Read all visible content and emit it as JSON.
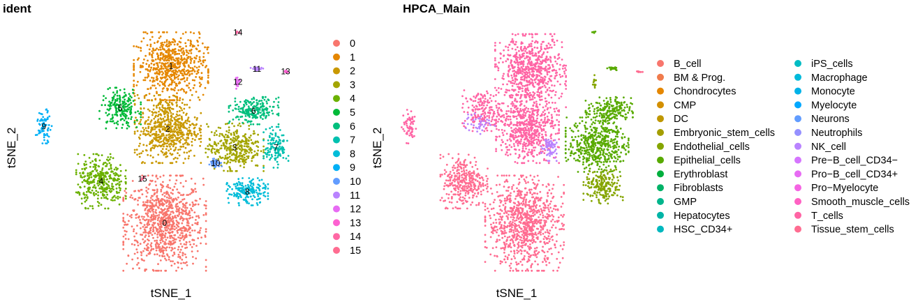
{
  "chart_data": [
    {
      "type": "scatter",
      "title": "ident",
      "xlabel": "tSNE_1",
      "ylabel": "tSNE_2",
      "grid": false,
      "legend_position": "right",
      "legend": [
        "0",
        "1",
        "2",
        "3",
        "4",
        "5",
        "6",
        "7",
        "8",
        "9",
        "10",
        "11",
        "12",
        "13",
        "14",
        "15"
      ],
      "colors": [
        "#F8766D",
        "#E58700",
        "#C99800",
        "#A3A500",
        "#6BB100",
        "#00BA38",
        "#00BF7D",
        "#00C0AF",
        "#00BCD8",
        "#00B0F6",
        "#619CFF",
        "#B983FF",
        "#E76BF3",
        "#FD61D1",
        "#FF67A4",
        "#FF6C91"
      ],
      "clusters": [
        {
          "id": "0",
          "label": "0",
          "x": -2,
          "y": -30,
          "sx": 10,
          "sy": 14,
          "n": 900
        },
        {
          "id": "1",
          "label": "1",
          "x": 0,
          "y": 30,
          "sx": 9,
          "sy": 10,
          "n": 650
        },
        {
          "id": "2",
          "label": "2",
          "x": -1,
          "y": 6,
          "sx": 8,
          "sy": 10,
          "n": 600
        },
        {
          "id": "3",
          "label": "3",
          "x": 20,
          "y": -1,
          "sx": 7,
          "sy": 7,
          "n": 350
        },
        {
          "id": "4",
          "label": "4",
          "x": -22,
          "y": -14,
          "sx": 6,
          "sy": 8,
          "n": 350
        },
        {
          "id": "5",
          "label": "5",
          "x": -16,
          "y": 14,
          "sx": 5,
          "sy": 6,
          "n": 200
        },
        {
          "id": "6",
          "label": "6",
          "x": 26,
          "y": 13,
          "sx": 6,
          "sy": 4,
          "n": 220
        },
        {
          "id": "7",
          "label": "7",
          "x": 33,
          "y": -1,
          "sx": 3,
          "sy": 6,
          "n": 130
        },
        {
          "id": "8",
          "label": "8",
          "x": 24,
          "y": -18,
          "sx": 5,
          "sy": 4,
          "n": 180
        },
        {
          "id": "9",
          "label": "9",
          "x": -40,
          "y": 7,
          "sx": 2,
          "sy": 5,
          "n": 70
        },
        {
          "id": "10",
          "label": "10",
          "x": 14,
          "y": -7,
          "sx": 1.5,
          "sy": 1.5,
          "n": 40
        },
        {
          "id": "11",
          "label": "11",
          "x": 27,
          "y": 29,
          "sx": 1.5,
          "sy": 0.5,
          "n": 25
        },
        {
          "id": "12",
          "label": "12",
          "x": 21,
          "y": 24,
          "sx": 0.6,
          "sy": 2,
          "n": 18
        },
        {
          "id": "13",
          "label": "13",
          "x": 36,
          "y": 28,
          "sx": 0.8,
          "sy": 0.4,
          "n": 8
        },
        {
          "id": "14",
          "label": "14",
          "x": 21,
          "y": 43,
          "sx": 0.6,
          "sy": 0.4,
          "n": 6
        },
        {
          "id": "15",
          "label": "15",
          "x": -9,
          "y": -13,
          "sx": 0.6,
          "sy": 0.6,
          "n": 6
        }
      ]
    },
    {
      "type": "scatter",
      "title": "HPCA_Main",
      "xlabel": "tSNE_1",
      "ylabel": "tSNE_2",
      "grid": false,
      "legend_position": "right",
      "legend": [
        "B_cell",
        "BM & Prog.",
        "Chondrocytes",
        "CMP",
        "DC",
        "Embryonic_stem_cells",
        "Endothelial_cells",
        "Epithelial_cells",
        "Erythroblast",
        "Fibroblasts",
        "GMP",
        "Hepatocytes",
        "HSC_CD34+",
        "iPS_cells",
        "Macrophage",
        "Monocyte",
        "Myelocyte",
        "Neurons",
        "Neutrophils",
        "NK_cell",
        "Pre−B_cell_CD34−",
        "Pro−B_cell_CD34+",
        "Pro−Myelocyte",
        "Smooth_muscle_cells",
        "T_cells",
        "Tissue_stem_cells"
      ],
      "colors": [
        "#F8766D",
        "#EA8331",
        "#D89000",
        "#C09B00",
        "#A3A500",
        "#7CAE00",
        "#39B600",
        "#00BB4E",
        "#00BF7D",
        "#00C1A3",
        "#00BFC4",
        "#00BAE0",
        "#00B0F6",
        "#35A2FF",
        "#9590FF",
        "#C77CFF",
        "#E76BF3",
        "#FA62DB",
        "#FF62BC",
        "#FF6C91"
      ],
      "legend_colors": [
        "#F8766D",
        "#F07B4C",
        "#E58700",
        "#D38F00",
        "#BF9700",
        "#A49E00",
        "#85A500",
        "#58AA00",
        "#00AF3D",
        "#00B267",
        "#00B58C",
        "#00B4A6",
        "#00B8BF",
        "#00BCC4",
        "#00BADB",
        "#00B2E8",
        "#00A8FF",
        "#619CFF",
        "#9590FF",
        "#B983FF",
        "#D575FE",
        "#E76BF3",
        "#F564E3",
        "#FF61C3",
        "#FF64A4",
        "#FF6C91"
      ],
      "clusters": [
        {
          "label": "Tissue_stem_cells",
          "x": -2,
          "y": -30,
          "sx": 10,
          "sy": 14,
          "n": 900,
          "color": 25
        },
        {
          "label": "T_cells",
          "x": 0,
          "y": 28,
          "sx": 9,
          "sy": 11,
          "n": 700,
          "color": 24
        },
        {
          "label": "T_cells",
          "x": -1,
          "y": 6,
          "sx": 8,
          "sy": 10,
          "n": 600,
          "color": 24
        },
        {
          "label": "Epithelial_cells",
          "x": 22,
          "y": 0,
          "sx": 8,
          "sy": 8,
          "n": 500,
          "color": 7
        },
        {
          "label": "Endothelial_cells",
          "x": 24,
          "y": -16,
          "sx": 5,
          "sy": 5,
          "n": 200,
          "color": 6
        },
        {
          "label": "Epithelial_cells",
          "x": 26,
          "y": 13,
          "sx": 6,
          "sy": 4,
          "n": 200,
          "color": 7
        },
        {
          "label": "Tissue_stem_cells",
          "x": -22,
          "y": -14,
          "sx": 6,
          "sy": 8,
          "n": 330,
          "color": 25
        },
        {
          "label": "T_cells",
          "x": -16,
          "y": 13,
          "sx": 5,
          "sy": 6,
          "n": 170,
          "color": 24
        },
        {
          "label": "NK_cell",
          "x": -17,
          "y": 8,
          "sx": 4,
          "sy": 3,
          "n": 40,
          "color": 19
        },
        {
          "label": "NK_cell",
          "x": 6,
          "y": -1,
          "sx": 2,
          "sy": 4,
          "n": 60,
          "color": 19
        },
        {
          "label": "T_cells",
          "x": -40,
          "y": 7,
          "sx": 2,
          "sy": 5,
          "n": 60,
          "color": 24
        },
        {
          "label": "Endothelial_cells",
          "x": 21,
          "y": 24,
          "sx": 0.6,
          "sy": 2,
          "n": 14,
          "color": 6
        },
        {
          "label": "Epithelial_cells",
          "x": 27,
          "y": 29,
          "sx": 1.5,
          "sy": 0.5,
          "n": 20,
          "color": 7
        },
        {
          "label": "Epithelial_cells",
          "x": 21,
          "y": 43,
          "sx": 0.6,
          "sy": 0.4,
          "n": 6,
          "color": 7
        },
        {
          "label": "Tissue_stem_cells",
          "x": 36,
          "y": 28,
          "sx": 0.8,
          "sy": 0.4,
          "n": 8,
          "color": 25
        }
      ]
    }
  ]
}
